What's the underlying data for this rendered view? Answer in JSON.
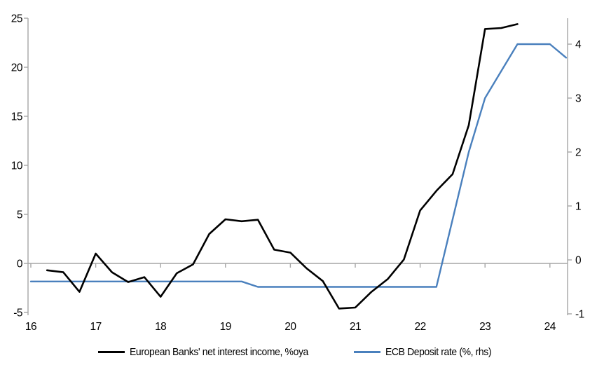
{
  "colors": {
    "axis_line": "#a6a6a6",
    "zero_line": "#a6a6a6",
    "tick_text": "#000000",
    "nii_line": "#000000",
    "ecb_line": "#4a80bd",
    "background": "#ffffff"
  },
  "legend": {
    "nii_label": "European Banks' net interest income, %oya",
    "ecb_label": "ECB Deposit rate (%, rhs)"
  },
  "chart_data": {
    "type": "line",
    "title": "",
    "xlabel": "",
    "ylabel_left": "",
    "ylabel_right": "",
    "grid": false,
    "zero_gridline": true,
    "legend_position": "bottom",
    "x_axis": {
      "tick_labels": [
        "16",
        "17",
        "18",
        "19",
        "20",
        "21",
        "22",
        "23",
        "24"
      ],
      "tick_values": [
        16,
        17,
        18,
        19,
        20,
        21,
        22,
        23,
        24
      ],
      "range": [
        16,
        24.3
      ]
    },
    "left_y_axis": {
      "tick_labels": [
        "25",
        "20",
        "15",
        "10",
        "5",
        "0",
        "-5"
      ],
      "tick_values": [
        25,
        20,
        15,
        10,
        5,
        0,
        -5
      ],
      "range": [
        -5,
        25
      ]
    },
    "right_y_axis": {
      "tick_labels": [
        "4",
        "3",
        "2",
        "1",
        "0",
        "-1"
      ],
      "tick_values": [
        4,
        3,
        2,
        1,
        0,
        -1
      ],
      "range": [
        -1,
        4.45
      ]
    },
    "series": [
      {
        "name": "European Banks' net interest income, %oya",
        "axis": "left",
        "color": "#000000",
        "stroke_width": 2.6,
        "x": [
          16.25,
          16.5,
          16.75,
          17.0,
          17.25,
          17.5,
          17.75,
          18.0,
          18.25,
          18.5,
          18.75,
          19.0,
          19.25,
          19.5,
          19.75,
          20.0,
          20.25,
          20.5,
          20.75,
          21.0,
          21.25,
          21.5,
          21.75,
          22.0,
          22.25,
          22.5,
          22.75,
          23.0,
          23.25,
          23.5
        ],
        "values": [
          -0.7,
          -0.9,
          -2.9,
          1.0,
          -0.9,
          -1.9,
          -1.4,
          -3.4,
          -1.0,
          -0.1,
          3.0,
          4.5,
          4.3,
          4.45,
          1.4,
          1.1,
          -0.5,
          -1.8,
          -4.6,
          -4.5,
          -2.9,
          -1.6,
          0.4,
          5.4,
          7.4,
          9.1,
          14.1,
          23.9,
          24.0,
          24.4
        ]
      },
      {
        "name": "ECB Deposit rate (%, rhs)",
        "axis": "right",
        "color": "#4a80bd",
        "stroke_width": 2.4,
        "x": [
          16.0,
          16.25,
          16.5,
          16.75,
          17.0,
          17.25,
          17.5,
          17.75,
          18.0,
          18.25,
          18.5,
          18.75,
          19.0,
          19.25,
          19.5,
          19.75,
          20.0,
          20.25,
          20.5,
          20.75,
          21.0,
          21.25,
          21.5,
          21.75,
          22.0,
          22.25,
          22.5,
          22.75,
          23.0,
          23.25,
          23.5,
          23.75,
          24.0,
          24.25
        ],
        "values": [
          -0.4,
          -0.4,
          -0.4,
          -0.4,
          -0.4,
          -0.4,
          -0.4,
          -0.4,
          -0.4,
          -0.4,
          -0.4,
          -0.4,
          -0.4,
          -0.4,
          -0.5,
          -0.5,
          -0.5,
          -0.5,
          -0.5,
          -0.5,
          -0.5,
          -0.5,
          -0.5,
          -0.5,
          -0.5,
          -0.5,
          0.75,
          2.0,
          3.0,
          3.5,
          4.0,
          4.0,
          4.0,
          3.75
        ]
      }
    ]
  }
}
